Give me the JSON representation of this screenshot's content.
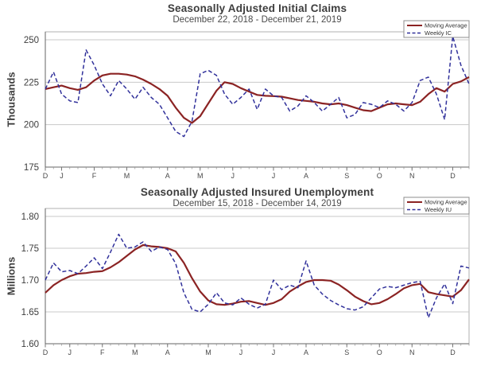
{
  "colors": {
    "moving_average": "#8b2323",
    "weekly": "#31319b",
    "gridline": "#c9c9c9",
    "plot_border": "#b0b0b0",
    "axis": "#666666",
    "tick_text": "#3d3d3d",
    "month_text": "#4a4a4a",
    "legend_border": "#8c8c8c",
    "background": "#ffffff"
  },
  "chart_data": [
    {
      "type": "line",
      "title": "Seasonally Adjusted Initial Claims",
      "subtitle": "December 22, 2018 - December 21, 2019",
      "ylabel": "Thousands",
      "xlabel": "",
      "ylim": [
        175,
        250
      ],
      "grid": true,
      "weeks": 53,
      "y_ticks": [
        {
          "value": 175,
          "label": "175"
        },
        {
          "value": 200,
          "label": "200"
        },
        {
          "value": 225,
          "label": "225"
        },
        {
          "value": 250,
          "label": "250"
        }
      ],
      "x_month_ticks": [
        {
          "label": "D",
          "week": 0
        },
        {
          "label": "J",
          "week": 2
        },
        {
          "label": "F",
          "week": 6
        },
        {
          "label": "M",
          "week": 10
        },
        {
          "label": "A",
          "week": 15
        },
        {
          "label": "M",
          "week": 19
        },
        {
          "label": "J",
          "week": 23
        },
        {
          "label": "J",
          "week": 28
        },
        {
          "label": "A",
          "week": 32
        },
        {
          "label": "S",
          "week": 37
        },
        {
          "label": "O",
          "week": 41
        },
        {
          "label": "N",
          "week": 45
        },
        {
          "label": "D",
          "week": 50
        }
      ],
      "legend": {
        "position": "top-right",
        "entries": [
          {
            "label": "Moving Average",
            "style": "solid",
            "color_key": "moving_average"
          },
          {
            "label": "Weekly IC",
            "style": "dashed",
            "color_key": "weekly"
          }
        ]
      },
      "series": [
        {
          "name": "Moving Average",
          "style": "solid",
          "color_key": "moving_average",
          "values": [
            221,
            222,
            223,
            221.5,
            220.5,
            222,
            226,
            229,
            230,
            230,
            229.5,
            228.5,
            226.5,
            224,
            221,
            217,
            210,
            204,
            201,
            205,
            212.5,
            220,
            225,
            224,
            221.5,
            219.5,
            217.5,
            217,
            216.8,
            216.5,
            215.5,
            214.5,
            214,
            213.5,
            212.5,
            212,
            212.5,
            211.5,
            210,
            208.5,
            208,
            210,
            212,
            212.5,
            212,
            211.5,
            213.5,
            218,
            221.5,
            219.5,
            224,
            225.5,
            228
          ]
        },
        {
          "name": "Weekly IC",
          "style": "dashed",
          "color_key": "weekly",
          "values": [
            221,
            231,
            218,
            214,
            213,
            244,
            235,
            224,
            217,
            226,
            221,
            215,
            222,
            216,
            212,
            204,
            196,
            193,
            202,
            230,
            232,
            229,
            218,
            212,
            216,
            221,
            209,
            221,
            217,
            216,
            208,
            211,
            217,
            213,
            208,
            212,
            216,
            204,
            206,
            213,
            212,
            210,
            214,
            212,
            208,
            213,
            226,
            228,
            218,
            203,
            252,
            235,
            224
          ]
        }
      ]
    },
    {
      "type": "line",
      "title": "Seasonally Adjusted Insured Unemployment",
      "subtitle": "December 15, 2018 - December 14, 2019",
      "ylabel": "Millions",
      "xlabel": "",
      "ylim": [
        1.6,
        1.8
      ],
      "grid": true,
      "weeks": 53,
      "y_ticks": [
        {
          "value": 1.6,
          "label": "1.60"
        },
        {
          "value": 1.65,
          "label": "1.65"
        },
        {
          "value": 1.7,
          "label": "1.70"
        },
        {
          "value": 1.75,
          "label": "1.75"
        },
        {
          "value": 1.8,
          "label": "1.80"
        }
      ],
      "x_month_ticks": [
        {
          "label": "D",
          "week": 0
        },
        {
          "label": "J",
          "week": 3
        },
        {
          "label": "F",
          "week": 7
        },
        {
          "label": "M",
          "week": 11
        },
        {
          "label": "A",
          "week": 15
        },
        {
          "label": "M",
          "week": 20
        },
        {
          "label": "J",
          "week": 24
        },
        {
          "label": "J",
          "week": 28
        },
        {
          "label": "A",
          "week": 32
        },
        {
          "label": "S",
          "week": 37
        },
        {
          "label": "O",
          "week": 41
        },
        {
          "label": "N",
          "week": 45
        },
        {
          "label": "D",
          "week": 50
        }
      ],
      "legend": {
        "position": "top-right",
        "entries": [
          {
            "label": "Moving Average",
            "style": "solid",
            "color_key": "moving_average"
          },
          {
            "label": "Weekly IU",
            "style": "dashed",
            "color_key": "weekly"
          }
        ]
      },
      "series": [
        {
          "name": "Moving Average",
          "style": "solid",
          "color_key": "moving_average",
          "values": [
            1.68,
            1.692,
            1.7,
            1.706,
            1.71,
            1.711,
            1.713,
            1.714,
            1.72,
            1.728,
            1.738,
            1.748,
            1.755,
            1.753,
            1.752,
            1.75,
            1.745,
            1.727,
            1.703,
            1.682,
            1.668,
            1.662,
            1.661,
            1.663,
            1.666,
            1.667,
            1.664,
            1.661,
            1.664,
            1.67,
            1.682,
            1.69,
            1.697,
            1.7,
            1.7,
            1.699,
            1.693,
            1.684,
            1.674,
            1.667,
            1.662,
            1.664,
            1.67,
            1.678,
            1.687,
            1.692,
            1.694,
            1.681,
            1.678,
            1.676,
            1.674,
            1.684,
            1.701
          ]
        },
        {
          "name": "Weekly IU",
          "style": "dashed",
          "color_key": "weekly",
          "values": [
            1.7,
            1.727,
            1.713,
            1.715,
            1.71,
            1.722,
            1.735,
            1.718,
            1.744,
            1.772,
            1.75,
            1.752,
            1.76,
            1.745,
            1.752,
            1.748,
            1.726,
            1.68,
            1.654,
            1.65,
            1.662,
            1.68,
            1.664,
            1.661,
            1.672,
            1.662,
            1.656,
            1.662,
            1.7,
            1.685,
            1.692,
            1.688,
            1.73,
            1.692,
            1.678,
            1.668,
            1.661,
            1.655,
            1.653,
            1.658,
            1.672,
            1.686,
            1.69,
            1.688,
            1.692,
            1.696,
            1.698,
            1.641,
            1.672,
            1.694,
            1.663,
            1.722,
            1.719
          ]
        }
      ]
    }
  ]
}
